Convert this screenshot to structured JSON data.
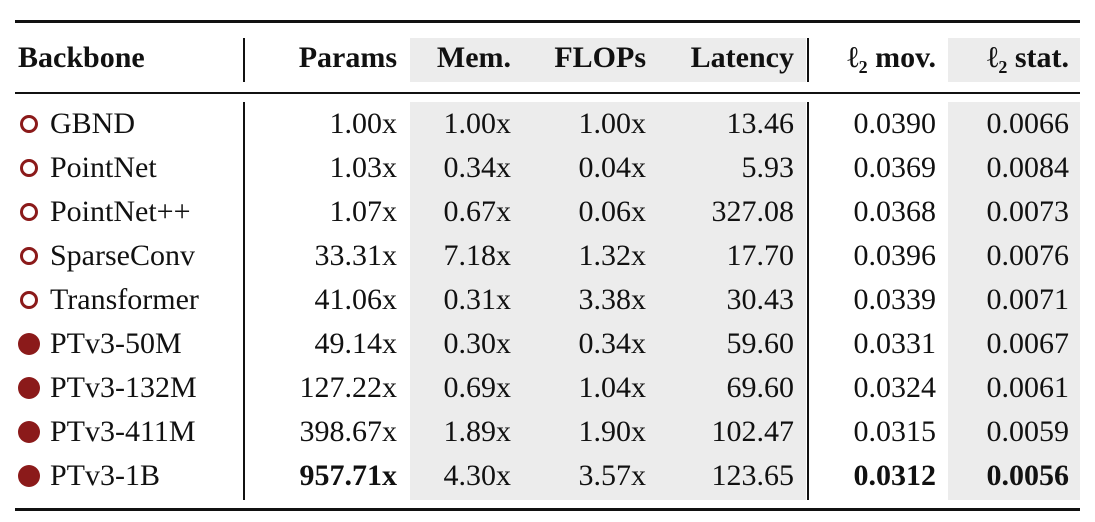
{
  "table": {
    "header": [
      "Backbone",
      "Params",
      "Mem.",
      "FLOPs",
      "Latency",
      "ℓ₂ mov.",
      "ℓ₂ stat."
    ],
    "rows": [
      [
        "GBND",
        "1.00x",
        "1.00x",
        "1.00x",
        "13.46",
        "0.0390",
        "0.0066"
      ],
      [
        "PointNet",
        "1.03x",
        "0.34x",
        "0.04x",
        "5.93",
        "0.0369",
        "0.0084"
      ],
      [
        "PointNet++",
        "1.07x",
        "0.67x",
        "0.06x",
        "327.08",
        "0.0368",
        "0.0073"
      ],
      [
        "SparseConv",
        "33.31x",
        "7.18x",
        "1.32x",
        "17.70",
        "0.0396",
        "0.0076"
      ],
      [
        "Transformer",
        "41.06x",
        "0.31x",
        "3.38x",
        "30.43",
        "0.0339",
        "0.0071"
      ],
      [
        "PTv3-50M",
        "49.14x",
        "0.30x",
        "0.34x",
        "59.60",
        "0.0331",
        "0.0067"
      ],
      [
        "PTv3-132M",
        "127.22x",
        "0.69x",
        "1.04x",
        "69.60",
        "0.0324",
        "0.0061"
      ],
      [
        "PTv3-411M",
        "398.67x",
        "1.89x",
        "1.90x",
        "102.47",
        "0.0315",
        "0.0059"
      ],
      [
        "PTv3-1B",
        "957.71x",
        "4.30x",
        "3.57x",
        "123.65",
        "0.0312",
        "0.0056"
      ]
    ]
  }
}
